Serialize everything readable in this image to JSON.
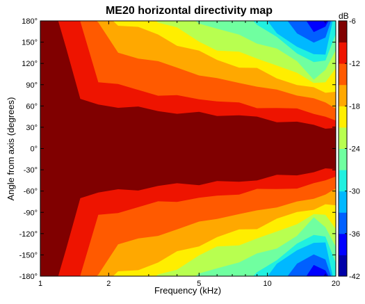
{
  "chart_data": {
    "type": "heatmap",
    "subtype": "filled-contour",
    "title": "ME20 horizontal directivity map",
    "xlabel": "Frequency (kHz)",
    "ylabel": "Angle from axis (degrees)",
    "x_scale": "log",
    "xlim": [
      1,
      20
    ],
    "ylim": [
      -180,
      180
    ],
    "x_ticks": [
      1,
      2,
      5,
      10,
      20
    ],
    "x_tick_labels": [
      "1",
      "2",
      "5",
      "10",
      "20"
    ],
    "y_ticks": [
      180,
      150,
      120,
      90,
      60,
      30,
      0,
      -30,
      -60,
      -90,
      -120,
      -150,
      -180
    ],
    "y_tick_labels": [
      "180°",
      "150°",
      "120°",
      "90°",
      "60°",
      "30°",
      "0°",
      "-30°",
      "-60°",
      "-90°",
      "-120°",
      "-150°",
      "-180°"
    ],
    "colorbar": {
      "label": "dB",
      "range": [
        -42,
        -6
      ],
      "ticks": [
        -6,
        -12,
        -18,
        -24,
        -30,
        -36,
        -42
      ],
      "tick_labels": [
        "-6",
        "-12",
        "-18",
        "-24",
        "-30",
        "-36",
        "-42"
      ],
      "colormap": "jet",
      "levels": [
        {
          "range": [
            -42,
            -39
          ],
          "color": "#0000a8"
        },
        {
          "range": [
            -39,
            -36
          ],
          "color": "#0000ff"
        },
        {
          "range": [
            -36,
            -33
          ],
          "color": "#0060ff"
        },
        {
          "range": [
            -33,
            -30
          ],
          "color": "#00b8ff"
        },
        {
          "range": [
            -30,
            -27
          ],
          "color": "#20f0e0"
        },
        {
          "range": [
            -27,
            -24
          ],
          "color": "#70ffa0"
        },
        {
          "range": [
            -24,
            -21
          ],
          "color": "#b8ff50"
        },
        {
          "range": [
            -21,
            -18
          ],
          "color": "#ffee00"
        },
        {
          "range": [
            -18,
            -15
          ],
          "color": "#ffa800"
        },
        {
          "range": [
            -15,
            -12
          ],
          "color": "#ff5a00"
        },
        {
          "range": [
            -12,
            -9
          ],
          "color": "#ee1400"
        },
        {
          "range": [
            -9,
            -6
          ],
          "color": "#800000"
        }
      ]
    },
    "contour_boundaries": {
      "note": "approximate upper-half angle (degrees) where each dB level is reached; map is symmetric about 0°",
      "frequencies_khz": [
        1.0,
        1.15,
        1.3,
        1.5,
        1.8,
        2.2,
        2.7,
        3.3,
        4.0,
        5.0,
        6.0,
        7.5,
        9.0,
        11.0,
        13.5,
        16.0,
        18.0,
        20.0
      ],
      "levels_db": [
        -9,
        -12,
        -15,
        -18,
        -21,
        -24,
        -27,
        -30,
        -33,
        -36,
        -39
      ],
      "angles_deg": [
        [
          181,
          181,
          145,
          68,
          60,
          59,
          58,
          55,
          50,
          48,
          47,
          47,
          45,
          40,
          35,
          32,
          30,
          28
        ],
        [
          181,
          181,
          181,
          178,
          95,
          88,
          82,
          78,
          74,
          70,
          66,
          62,
          60,
          58,
          55,
          50,
          42,
          40
        ],
        [
          181,
          181,
          181,
          181,
          178,
          132,
          128,
          122,
          115,
          106,
          96,
          92,
          88,
          82,
          78,
          70,
          62,
          58
        ],
        [
          181,
          181,
          181,
          181,
          181,
          175,
          170,
          158,
          148,
          138,
          125,
          115,
          110,
          100,
          92,
          85,
          80,
          78
        ],
        [
          181,
          181,
          181,
          181,
          181,
          181,
          181,
          178,
          170,
          150,
          142,
          135,
          125,
          118,
          105,
          95,
          95,
          110
        ],
        [
          181,
          181,
          181,
          181,
          181,
          181,
          181,
          181,
          181,
          178,
          170,
          160,
          150,
          138,
          122,
          100,
          110,
          140
        ],
        [
          181,
          181,
          181,
          181,
          181,
          181,
          181,
          181,
          181,
          181,
          181,
          181,
          175,
          155,
          135,
          120,
          125,
          165
        ],
        [
          181,
          181,
          181,
          181,
          181,
          181,
          181,
          181,
          181,
          181,
          181,
          181,
          181,
          165,
          142,
          130,
          135,
          181
        ],
        [
          181,
          181,
          181,
          181,
          181,
          181,
          181,
          181,
          181,
          181,
          181,
          181,
          181,
          181,
          160,
          150,
          155,
          181
        ],
        [
          181,
          181,
          181,
          181,
          181,
          181,
          181,
          181,
          181,
          181,
          181,
          181,
          181,
          181,
          181,
          165,
          168,
          181
        ],
        [
          181,
          181,
          181,
          181,
          181,
          181,
          181,
          181,
          181,
          181,
          181,
          181,
          181,
          181,
          181,
          181,
          176,
          181
        ]
      ]
    },
    "grid": false,
    "legend": "colorbar-right"
  }
}
